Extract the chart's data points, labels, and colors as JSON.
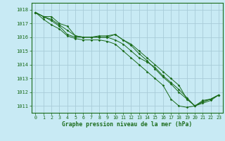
{
  "title": "Graphe pression niveau de la mer (hPa)",
  "background_color": "#c8eaf4",
  "grid_color": "#a8ccd8",
  "line_color": "#1a6b1a",
  "xlim": [
    -0.5,
    23.5
  ],
  "ylim": [
    1010.5,
    1018.5
  ],
  "yticks": [
    1011,
    1012,
    1013,
    1014,
    1015,
    1016,
    1017,
    1018
  ],
  "xticks": [
    0,
    1,
    2,
    3,
    4,
    5,
    6,
    7,
    8,
    9,
    10,
    11,
    12,
    13,
    14,
    15,
    16,
    17,
    18,
    19,
    20,
    21,
    22,
    23
  ],
  "series": [
    [
      1017.8,
      1017.5,
      1017.5,
      1017.0,
      1016.8,
      1016.1,
      1016.0,
      1016.0,
      1016.0,
      1016.0,
      1015.8,
      1015.5,
      1015.0,
      1014.5,
      1014.2,
      1013.8,
      1013.2,
      1012.7,
      1012.2,
      1011.6,
      1011.0,
      1011.3,
      1011.5,
      1011.8
    ],
    [
      1017.8,
      1017.5,
      1017.3,
      1016.9,
      1016.5,
      1016.1,
      1016.0,
      1016.0,
      1016.1,
      1016.1,
      1016.2,
      1015.8,
      1015.5,
      1015.0,
      1014.5,
      1014.0,
      1013.5,
      1013.0,
      1012.5,
      1011.5,
      1011.0,
      1011.4,
      1011.5,
      1011.8
    ],
    [
      1017.8,
      1017.5,
      1017.2,
      1016.8,
      1016.2,
      1016.0,
      1016.0,
      1016.0,
      1016.0,
      1016.0,
      1016.2,
      1015.8,
      1015.4,
      1014.8,
      1014.3,
      1013.7,
      1013.1,
      1012.6,
      1012.0,
      1011.5,
      1011.0,
      1011.3,
      1011.5,
      1011.8
    ],
    [
      1017.8,
      1017.3,
      1016.9,
      1016.6,
      1016.1,
      1015.9,
      1015.8,
      1015.8,
      1015.8,
      1015.7,
      1015.5,
      1015.0,
      1014.5,
      1014.0,
      1013.5,
      1013.0,
      1012.5,
      1011.5,
      1011.0,
      1010.9,
      1011.0,
      1011.2,
      1011.4,
      1011.8
    ]
  ]
}
